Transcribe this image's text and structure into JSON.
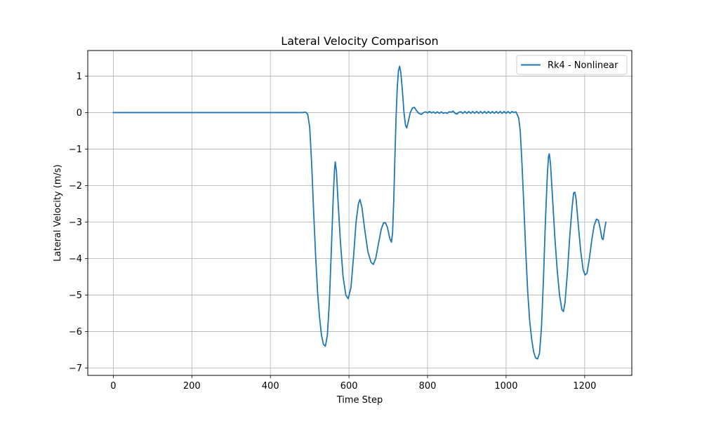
{
  "chart_data": {
    "type": "line",
    "title": "Lateral Velocity Comparison",
    "xlabel": "Time Step",
    "ylabel": "Lateral Velocity (m/s)",
    "xlim": [
      -65,
      1320
    ],
    "ylim": [
      -7.2,
      1.7
    ],
    "xticks": [
      0,
      200,
      400,
      600,
      800,
      1000,
      1200
    ],
    "yticks": [
      1,
      0,
      -1,
      -2,
      -3,
      -4,
      -5,
      -6,
      -7
    ],
    "xtick_labels": [
      "0",
      "200",
      "400",
      "600",
      "800",
      "1000",
      "1200"
    ],
    "ytick_labels": [
      "1",
      "0",
      "−1",
      "−2",
      "−3",
      "−4",
      "−5",
      "−6",
      "−7"
    ],
    "grid": true,
    "legend_position": "top-right",
    "series": [
      {
        "name": "Rk4 - Nonlinear",
        "color": "#1f77b4",
        "points": [
          [
            0,
            0
          ],
          [
            100,
            0
          ],
          [
            200,
            0
          ],
          [
            300,
            0
          ],
          [
            400,
            0
          ],
          [
            480,
            0
          ],
          [
            490,
            0.01
          ],
          [
            495,
            -0.05
          ],
          [
            500,
            -0.4
          ],
          [
            505,
            -1.4
          ],
          [
            510,
            -2.7
          ],
          [
            515,
            -3.9
          ],
          [
            520,
            -4.9
          ],
          [
            525,
            -5.6
          ],
          [
            530,
            -6.1
          ],
          [
            535,
            -6.35
          ],
          [
            540,
            -6.4
          ],
          [
            545,
            -6.1
          ],
          [
            550,
            -5.2
          ],
          [
            555,
            -3.8
          ],
          [
            560,
            -2.3
          ],
          [
            563,
            -1.6
          ],
          [
            565,
            -1.35
          ],
          [
            568,
            -1.6
          ],
          [
            572,
            -2.4
          ],
          [
            578,
            -3.5
          ],
          [
            585,
            -4.5
          ],
          [
            592,
            -5.0
          ],
          [
            598,
            -5.1
          ],
          [
            605,
            -4.8
          ],
          [
            612,
            -3.9
          ],
          [
            618,
            -3.0
          ],
          [
            624,
            -2.5
          ],
          [
            628,
            -2.38
          ],
          [
            633,
            -2.6
          ],
          [
            640,
            -3.2
          ],
          [
            648,
            -3.8
          ],
          [
            656,
            -4.1
          ],
          [
            662,
            -4.16
          ],
          [
            668,
            -4.0
          ],
          [
            675,
            -3.6
          ],
          [
            682,
            -3.2
          ],
          [
            688,
            -3.02
          ],
          [
            693,
            -3.02
          ],
          [
            698,
            -3.15
          ],
          [
            704,
            -3.45
          ],
          [
            708,
            -3.55
          ],
          [
            711,
            -3.3
          ],
          [
            714,
            -2.4
          ],
          [
            717,
            -1.2
          ],
          [
            720,
            -0.1
          ],
          [
            723,
            0.7
          ],
          [
            726,
            1.15
          ],
          [
            729,
            1.27
          ],
          [
            732,
            1.1
          ],
          [
            736,
            0.6
          ],
          [
            740,
            0.0
          ],
          [
            744,
            -0.35
          ],
          [
            747,
            -0.42
          ],
          [
            751,
            -0.25
          ],
          [
            756,
            0.0
          ],
          [
            762,
            0.13
          ],
          [
            767,
            0.14
          ],
          [
            772,
            0.05
          ],
          [
            778,
            -0.02
          ],
          [
            784,
            -0.05
          ],
          [
            790,
            0.0
          ],
          [
            795,
            0.02
          ],
          [
            800,
            -0.01
          ],
          [
            805,
            0.03
          ],
          [
            810,
            -0.01
          ],
          [
            815,
            0.02
          ],
          [
            820,
            -0.02
          ],
          [
            825,
            0.02
          ],
          [
            830,
            -0.02
          ],
          [
            835,
            0.02
          ],
          [
            840,
            -0.02
          ],
          [
            845,
            0.0
          ],
          [
            850,
            -0.02
          ],
          [
            855,
            0.02
          ],
          [
            860,
            0.01
          ],
          [
            865,
            0.04
          ],
          [
            870,
            -0.02
          ],
          [
            875,
            -0.04
          ],
          [
            880,
            0.01
          ],
          [
            885,
            0.02
          ],
          [
            890,
            -0.02
          ],
          [
            895,
            0.03
          ],
          [
            900,
            -0.02
          ],
          [
            905,
            0.03
          ],
          [
            910,
            -0.02
          ],
          [
            915,
            0.03
          ],
          [
            920,
            -0.02
          ],
          [
            925,
            0.03
          ],
          [
            930,
            -0.02
          ],
          [
            935,
            0.03
          ],
          [
            940,
            -0.02
          ],
          [
            945,
            0.03
          ],
          [
            950,
            -0.02
          ],
          [
            955,
            0.03
          ],
          [
            960,
            -0.02
          ],
          [
            965,
            0.03
          ],
          [
            970,
            -0.02
          ],
          [
            975,
            0.03
          ],
          [
            980,
            -0.02
          ],
          [
            985,
            0.03
          ],
          [
            990,
            -0.02
          ],
          [
            995,
            0.03
          ],
          [
            1000,
            -0.02
          ],
          [
            1005,
            0.03
          ],
          [
            1010,
            -0.02
          ],
          [
            1015,
            0.03
          ],
          [
            1020,
            0.0
          ],
          [
            1025,
            0.02
          ],
          [
            1028,
            -0.05
          ],
          [
            1032,
            -0.15
          ],
          [
            1036,
            -0.5
          ],
          [
            1040,
            -1.3
          ],
          [
            1045,
            -2.5
          ],
          [
            1050,
            -3.8
          ],
          [
            1055,
            -4.9
          ],
          [
            1060,
            -5.7
          ],
          [
            1065,
            -6.2
          ],
          [
            1070,
            -6.55
          ],
          [
            1075,
            -6.72
          ],
          [
            1080,
            -6.75
          ],
          [
            1085,
            -6.6
          ],
          [
            1090,
            -5.9
          ],
          [
            1095,
            -4.6
          ],
          [
            1100,
            -3.0
          ],
          [
            1105,
            -1.7
          ],
          [
            1108,
            -1.2
          ],
          [
            1110,
            -1.13
          ],
          [
            1113,
            -1.4
          ],
          [
            1118,
            -2.3
          ],
          [
            1124,
            -3.4
          ],
          [
            1130,
            -4.3
          ],
          [
            1136,
            -5.0
          ],
          [
            1142,
            -5.4
          ],
          [
            1146,
            -5.45
          ],
          [
            1150,
            -5.2
          ],
          [
            1156,
            -4.4
          ],
          [
            1162,
            -3.4
          ],
          [
            1168,
            -2.6
          ],
          [
            1172,
            -2.2
          ],
          [
            1175,
            -2.18
          ],
          [
            1178,
            -2.35
          ],
          [
            1184,
            -3.1
          ],
          [
            1190,
            -3.8
          ],
          [
            1196,
            -4.3
          ],
          [
            1201,
            -4.45
          ],
          [
            1206,
            -4.4
          ],
          [
            1212,
            -4.0
          ],
          [
            1218,
            -3.5
          ],
          [
            1224,
            -3.1
          ],
          [
            1230,
            -2.92
          ],
          [
            1235,
            -2.95
          ],
          [
            1240,
            -3.2
          ],
          [
            1244,
            -3.45
          ],
          [
            1247,
            -3.48
          ],
          [
            1250,
            -3.25
          ],
          [
            1254,
            -3.0
          ]
        ]
      }
    ]
  }
}
